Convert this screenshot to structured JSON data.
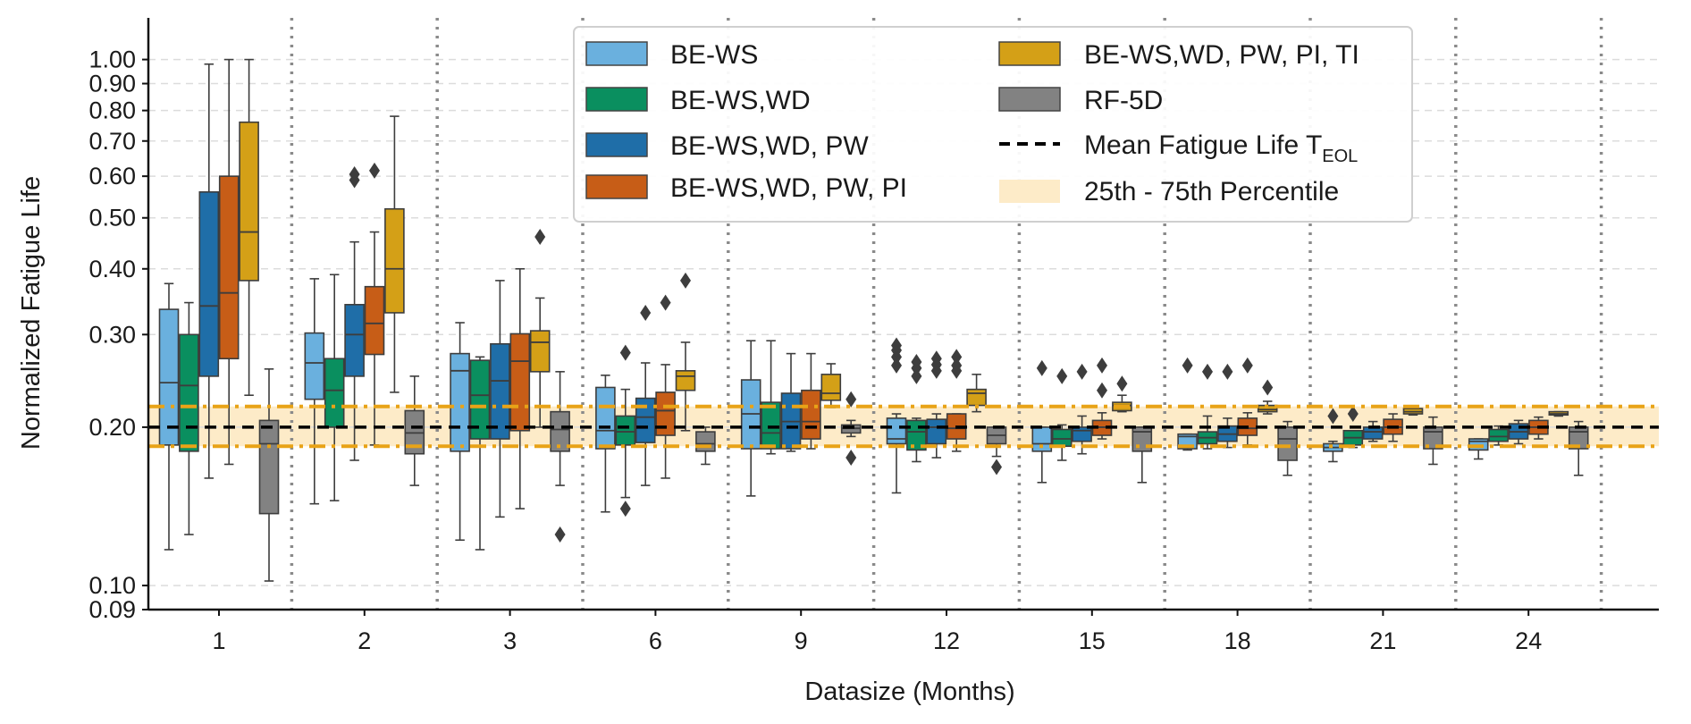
{
  "chart_data": {
    "type": "box",
    "xlabel": "Datasize (Months)",
    "ylabel": "Normalized Fatigue Life",
    "yscale": "log",
    "ylim": [
      0.09,
      1.2
    ],
    "categories": [
      "1",
      "2",
      "3",
      "6",
      "9",
      "12",
      "15",
      "18",
      "21",
      "24"
    ],
    "yticks": [
      "0.09",
      "0.10",
      "0.20",
      "0.30",
      "0.40",
      "0.50",
      "0.60",
      "0.70",
      "0.80",
      "0.90",
      "1.00"
    ],
    "legend_position": "top-center",
    "reference": {
      "mean_label": "Mean Fatigue Life T",
      "mean_subscript": "EOL",
      "mean_value": 0.2,
      "band_label": "25th - 75th Percentile",
      "band": [
        0.184,
        0.219
      ],
      "band_color": "#fdebc8",
      "band_line_color": "#e8a317"
    },
    "series": [
      {
        "name": "BE-WS",
        "color": "#6ab0de",
        "boxes": [
          {
            "whislo": 0.117,
            "q1": 0.185,
            "med": 0.243,
            "q3": 0.335,
            "whishi": 0.375,
            "fliers": []
          },
          {
            "whislo": 0.143,
            "q1": 0.226,
            "med": 0.265,
            "q3": 0.302,
            "whishi": 0.383,
            "fliers": []
          },
          {
            "whislo": 0.122,
            "q1": 0.18,
            "med": 0.256,
            "q3": 0.276,
            "whishi": 0.316,
            "fliers": []
          },
          {
            "whislo": 0.138,
            "q1": 0.182,
            "med": 0.197,
            "q3": 0.238,
            "whishi": 0.251,
            "fliers": []
          },
          {
            "whislo": 0.148,
            "q1": 0.182,
            "med": 0.212,
            "q3": 0.246,
            "whishi": 0.292,
            "fliers": []
          },
          {
            "whislo": 0.15,
            "q1": 0.186,
            "med": 0.19,
            "q3": 0.208,
            "whishi": 0.212,
            "fliers": [
              0.262,
              0.272,
              0.28,
              0.286
            ]
          },
          {
            "whislo": 0.157,
            "q1": 0.18,
            "med": 0.186,
            "q3": 0.2,
            "whishi": 0.2,
            "fliers": [
              0.259
            ]
          },
          {
            "whislo": 0.181,
            "q1": 0.182,
            "med": 0.192,
            "q3": 0.194,
            "whishi": 0.194,
            "fliers": [
              0.262
            ]
          },
          {
            "whislo": 0.172,
            "q1": 0.18,
            "med": 0.183,
            "q3": 0.186,
            "whishi": 0.188,
            "fliers": [
              0.21
            ]
          },
          {
            "whislo": 0.174,
            "q1": 0.181,
            "med": 0.188,
            "q3": 0.19,
            "whishi": 0.19,
            "fliers": []
          }
        ]
      },
      {
        "name": "BE-WS,WD",
        "color": "#0a8f5f",
        "boxes": [
          {
            "whislo": 0.125,
            "q1": 0.18,
            "med": 0.24,
            "q3": 0.3,
            "whishi": 0.345,
            "fliers": []
          },
          {
            "whislo": 0.145,
            "q1": 0.2,
            "med": 0.235,
            "q3": 0.27,
            "whishi": 0.39,
            "fliers": []
          },
          {
            "whislo": 0.117,
            "q1": 0.19,
            "med": 0.23,
            "q3": 0.268,
            "whishi": 0.272,
            "fliers": []
          },
          {
            "whislo": 0.147,
            "q1": 0.185,
            "med": 0.196,
            "q3": 0.21,
            "whishi": 0.236,
            "fliers": [
              0.14,
              0.277
            ]
          },
          {
            "whislo": 0.178,
            "q1": 0.182,
            "med": 0.195,
            "q3": 0.223,
            "whishi": 0.292,
            "fliers": []
          },
          {
            "whislo": 0.172,
            "q1": 0.181,
            "med": 0.196,
            "q3": 0.206,
            "whishi": 0.208,
            "fliers": [
              0.25,
              0.259,
              0.266
            ]
          },
          {
            "whislo": 0.173,
            "q1": 0.184,
            "med": 0.19,
            "q3": 0.198,
            "whishi": 0.202,
            "fliers": [
              0.25
            ]
          },
          {
            "whislo": 0.182,
            "q1": 0.186,
            "med": 0.191,
            "q3": 0.196,
            "whishi": 0.21,
            "fliers": [
              0.255
            ]
          },
          {
            "whislo": 0.183,
            "q1": 0.185,
            "med": 0.191,
            "q3": 0.197,
            "whishi": 0.197,
            "fliers": [
              0.212
            ]
          },
          {
            "whislo": 0.185,
            "q1": 0.188,
            "med": 0.192,
            "q3": 0.198,
            "whishi": 0.201,
            "fliers": []
          }
        ]
      },
      {
        "name": "BE-WS,WD, PW",
        "color": "#1f6ea8",
        "boxes": [
          {
            "whislo": 0.16,
            "q1": 0.25,
            "med": 0.34,
            "q3": 0.56,
            "whishi": 0.98,
            "fliers": []
          },
          {
            "whislo": 0.173,
            "q1": 0.25,
            "med": 0.3,
            "q3": 0.342,
            "whishi": 0.45,
            "fliers": [
              0.59,
              0.605
            ]
          },
          {
            "whislo": 0.135,
            "q1": 0.19,
            "med": 0.245,
            "q3": 0.288,
            "whishi": 0.38,
            "fliers": []
          },
          {
            "whislo": 0.155,
            "q1": 0.187,
            "med": 0.209,
            "q3": 0.227,
            "whishi": 0.265,
            "fliers": [
              0.33
            ]
          },
          {
            "whislo": 0.18,
            "q1": 0.182,
            "med": 0.205,
            "q3": 0.232,
            "whishi": 0.276,
            "fliers": []
          },
          {
            "whislo": 0.175,
            "q1": 0.186,
            "med": 0.2,
            "q3": 0.207,
            "whishi": 0.212,
            "fliers": [
              0.256,
              0.263,
              0.27
            ]
          },
          {
            "whislo": 0.178,
            "q1": 0.188,
            "med": 0.197,
            "q3": 0.2,
            "whishi": 0.21,
            "fliers": [
              0.255
            ]
          },
          {
            "whislo": 0.183,
            "q1": 0.188,
            "med": 0.194,
            "q3": 0.201,
            "whishi": 0.208,
            "fliers": [
              0.255
            ]
          },
          {
            "whislo": 0.188,
            "q1": 0.19,
            "med": 0.196,
            "q3": 0.2,
            "whishi": 0.205,
            "fliers": []
          },
          {
            "whislo": 0.186,
            "q1": 0.19,
            "med": 0.196,
            "q3": 0.203,
            "whishi": 0.206,
            "fliers": []
          }
        ]
      },
      {
        "name": "BE-WS,WD, PW, PI",
        "color": "#c75d17",
        "boxes": [
          {
            "whislo": 0.17,
            "q1": 0.27,
            "med": 0.36,
            "q3": 0.6,
            "whishi": 1.0,
            "fliers": []
          },
          {
            "whislo": 0.185,
            "q1": 0.275,
            "med": 0.315,
            "q3": 0.37,
            "whishi": 0.47,
            "fliers": [
              0.615
            ]
          },
          {
            "whislo": 0.14,
            "q1": 0.197,
            "med": 0.267,
            "q3": 0.301,
            "whishi": 0.4,
            "fliers": []
          },
          {
            "whislo": 0.16,
            "q1": 0.193,
            "med": 0.215,
            "q3": 0.233,
            "whishi": 0.263,
            "fliers": [
              0.345
            ]
          },
          {
            "whislo": 0.182,
            "q1": 0.19,
            "med": 0.205,
            "q3": 0.235,
            "whishi": 0.276,
            "fliers": []
          },
          {
            "whislo": 0.18,
            "q1": 0.19,
            "med": 0.199,
            "q3": 0.212,
            "whishi": 0.212,
            "fliers": [
              0.256,
              0.262,
              0.272
            ]
          },
          {
            "whislo": 0.19,
            "q1": 0.193,
            "med": 0.2,
            "q3": 0.206,
            "whishi": 0.213,
            "fliers": [
              0.235,
              0.262
            ]
          },
          {
            "whislo": 0.185,
            "q1": 0.193,
            "med": 0.199,
            "q3": 0.208,
            "whishi": 0.213,
            "fliers": [
              0.262
            ]
          },
          {
            "whislo": 0.188,
            "q1": 0.194,
            "med": 0.2,
            "q3": 0.207,
            "whishi": 0.212,
            "fliers": []
          },
          {
            "whislo": 0.19,
            "q1": 0.194,
            "med": 0.2,
            "q3": 0.206,
            "whishi": 0.209,
            "fliers": []
          }
        ]
      },
      {
        "name": "BE-WS,WD, PW, PI, TI",
        "color": "#d4a017",
        "boxes": [
          {
            "whislo": 0.23,
            "q1": 0.38,
            "med": 0.47,
            "q3": 0.76,
            "whishi": 1.0,
            "fliers": []
          },
          {
            "whislo": 0.233,
            "q1": 0.33,
            "med": 0.4,
            "q3": 0.52,
            "whishi": 0.78,
            "fliers": []
          },
          {
            "whislo": 0.2,
            "q1": 0.255,
            "med": 0.29,
            "q3": 0.305,
            "whishi": 0.352,
            "fliers": [
              0.46
            ]
          },
          {
            "whislo": 0.197,
            "q1": 0.235,
            "med": 0.25,
            "q3": 0.256,
            "whishi": 0.29,
            "fliers": [
              0.38
            ]
          },
          {
            "whislo": 0.218,
            "q1": 0.225,
            "med": 0.232,
            "q3": 0.252,
            "whishi": 0.264,
            "fliers": []
          },
          {
            "whislo": 0.214,
            "q1": 0.22,
            "med": 0.232,
            "q3": 0.236,
            "whishi": 0.252,
            "fliers": []
          },
          {
            "whislo": 0.214,
            "q1": 0.215,
            "med": 0.22,
            "q3": 0.223,
            "whishi": 0.23,
            "fliers": [
              0.242
            ]
          },
          {
            "whislo": 0.212,
            "q1": 0.214,
            "med": 0.216,
            "q3": 0.22,
            "whishi": 0.224,
            "fliers": [
              0.238
            ]
          },
          {
            "whislo": 0.211,
            "q1": 0.212,
            "med": 0.214,
            "q3": 0.217,
            "whishi": 0.218,
            "fliers": []
          },
          {
            "whislo": 0.21,
            "q1": 0.211,
            "med": 0.212,
            "q3": 0.214,
            "whishi": 0.214,
            "fliers": []
          }
        ]
      },
      {
        "name": "RF-5D",
        "color": "#828282",
        "boxes": [
          {
            "whislo": 0.102,
            "q1": 0.137,
            "med": 0.186,
            "q3": 0.206,
            "whishi": 0.258,
            "fliers": []
          },
          {
            "whislo": 0.155,
            "q1": 0.178,
            "med": 0.195,
            "q3": 0.215,
            "whishi": 0.25,
            "fliers": []
          },
          {
            "whislo": 0.155,
            "q1": 0.18,
            "med": 0.198,
            "q3": 0.214,
            "whishi": 0.255,
            "fliers": [
              0.125
            ]
          },
          {
            "whislo": 0.17,
            "q1": 0.18,
            "med": 0.186,
            "q3": 0.196,
            "whishi": 0.2,
            "fliers": []
          },
          {
            "whislo": 0.192,
            "q1": 0.195,
            "med": 0.199,
            "q3": 0.202,
            "whishi": 0.206,
            "fliers": [
              0.175,
              0.226
            ]
          },
          {
            "whislo": 0.176,
            "q1": 0.186,
            "med": 0.193,
            "q3": 0.2,
            "whishi": 0.2,
            "fliers": [
              0.168
            ]
          },
          {
            "whislo": 0.157,
            "q1": 0.18,
            "med": 0.196,
            "q3": 0.2,
            "whishi": 0.2,
            "fliers": []
          },
          {
            "whislo": 0.162,
            "q1": 0.173,
            "med": 0.19,
            "q3": 0.2,
            "whishi": 0.205,
            "fliers": []
          },
          {
            "whislo": 0.17,
            "q1": 0.182,
            "med": 0.196,
            "q3": 0.2,
            "whishi": 0.209,
            "fliers": []
          },
          {
            "whislo": 0.162,
            "q1": 0.182,
            "med": 0.196,
            "q3": 0.2,
            "whishi": 0.205,
            "fliers": []
          }
        ]
      }
    ]
  }
}
